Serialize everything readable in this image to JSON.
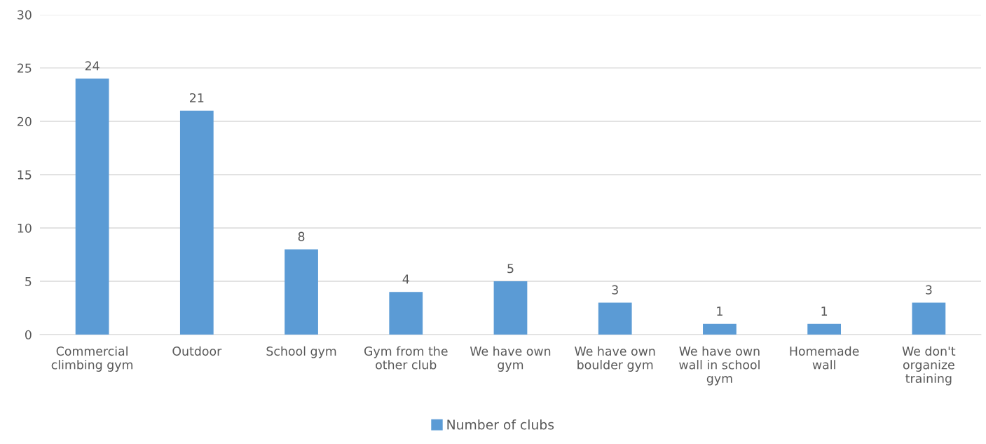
{
  "chart_data": {
    "type": "bar",
    "categories": [
      "Commercial\nclimbing gym",
      "Outdoor",
      "School gym",
      "Gym from the\nother club",
      "We have own\ngym",
      "We have own\nboulder gym",
      "We have own\nwall in school\ngym",
      "Homemade\nwall",
      "We don't\norganize\ntraining"
    ],
    "series": [
      {
        "name": "Number of clubs",
        "color": "#5b9bd5",
        "values": [
          24,
          21,
          8,
          4,
          5,
          3,
          1,
          1,
          3
        ]
      }
    ],
    "ylim": [
      0,
      30
    ],
    "yticks": [
      0,
      5,
      10,
      15,
      20,
      25,
      30
    ],
    "grid": "y",
    "legend": "bottom",
    "data_labels": true
  }
}
